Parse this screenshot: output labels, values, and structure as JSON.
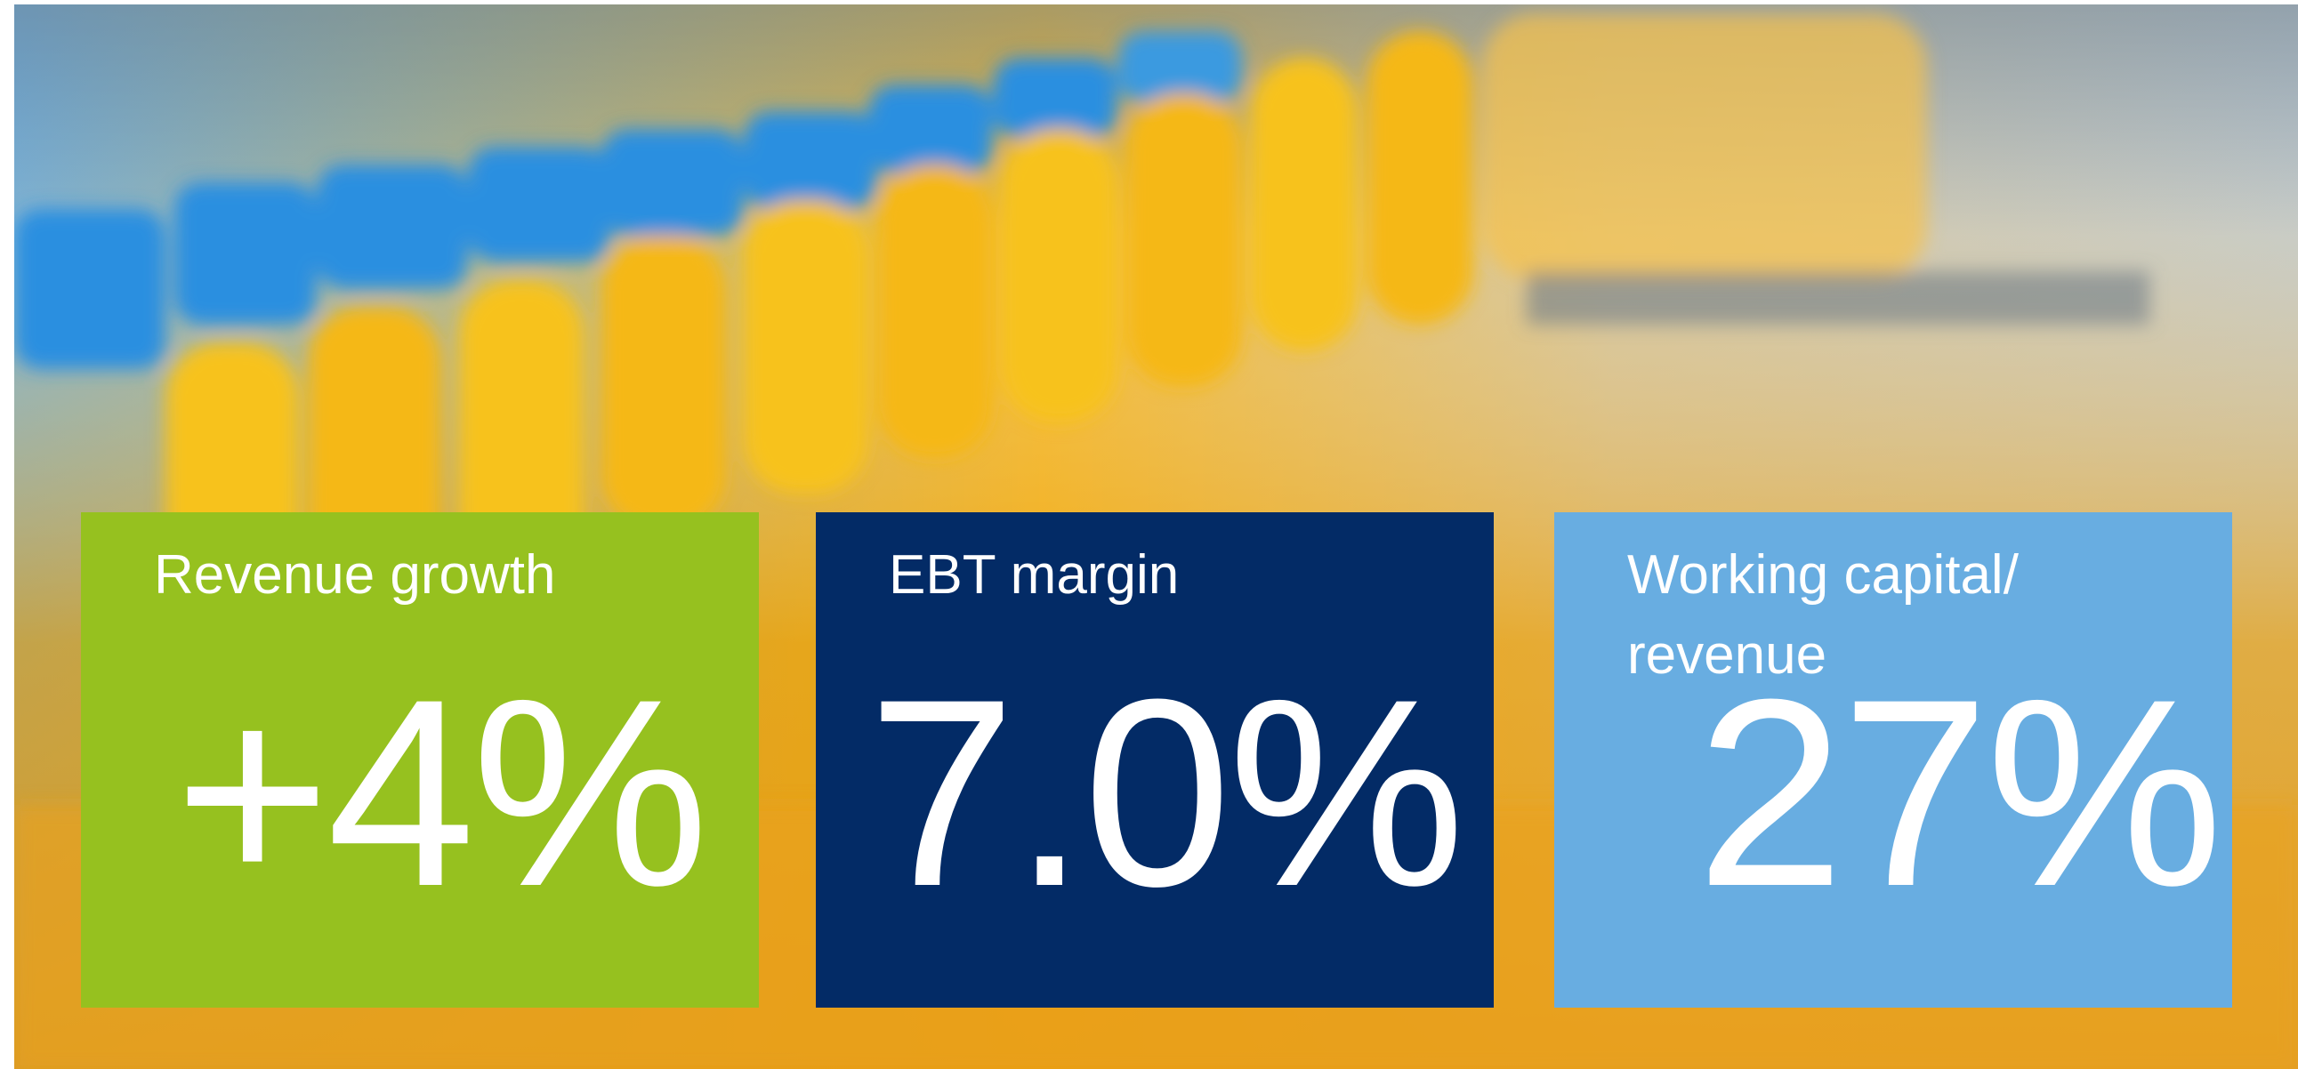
{
  "kpis": [
    {
      "label": "Revenue growth",
      "value": "+4%"
    },
    {
      "label": "EBT margin",
      "value": "7.0%"
    },
    {
      "label": "Working capital/ revenue",
      "value": "27%"
    }
  ]
}
